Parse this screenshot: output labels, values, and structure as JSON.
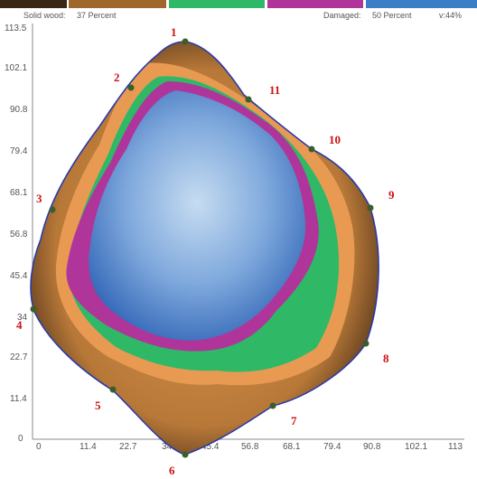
{
  "legend": {
    "items": [
      {
        "label": "Solid wood:",
        "value": "37 Percent"
      },
      {
        "label": "Damaged:",
        "value": "50 Percent"
      },
      {
        "label": "v:44%",
        "value": ""
      }
    ],
    "colors": {
      "solid_wood": "#8a5a2b",
      "transition": "#2eb868",
      "damaged": "#b0359a",
      "cavity": "#3a7fc6"
    }
  },
  "axes": {
    "y_ticks": [
      "113.5",
      "102.1",
      "90.8",
      "79.4",
      "68.1",
      "56.8",
      "45.4",
      "34",
      "22.7",
      "11.4",
      "0"
    ],
    "x_ticks": [
      "0",
      "11.4",
      "22.7",
      "34",
      "45.4",
      "56.8",
      "68.1",
      "79.4",
      "90.8",
      "102.1",
      "113"
    ]
  },
  "sensors": [
    {
      "label": "1"
    },
    {
      "label": "2"
    },
    {
      "label": "3"
    },
    {
      "label": "4"
    },
    {
      "label": "5"
    },
    {
      "label": "6"
    },
    {
      "label": "7"
    },
    {
      "label": "8"
    },
    {
      "label": "9"
    },
    {
      "label": "10"
    },
    {
      "label": "11"
    }
  ]
}
